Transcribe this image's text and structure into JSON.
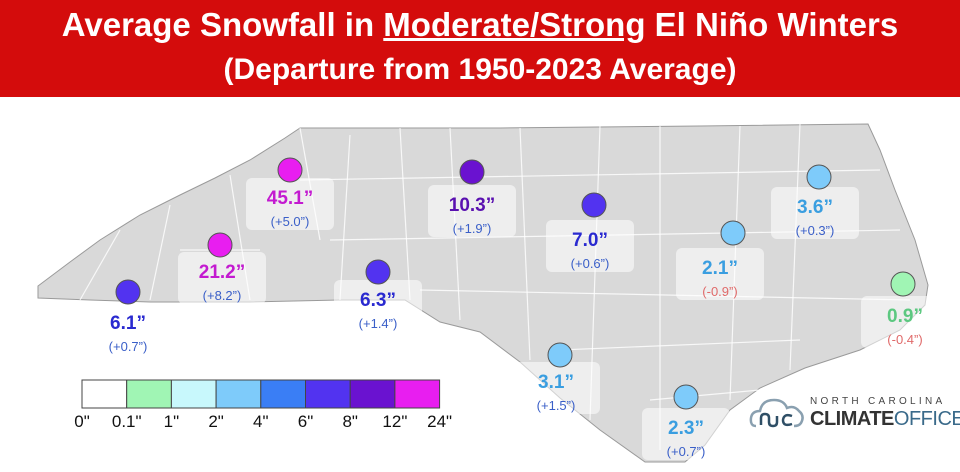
{
  "title": {
    "prefix": "Average Snowfall in ",
    "emphasis": "Moderate/Strong",
    "suffix": " El Niño Winters",
    "subtitle": "(Departure from 1950-2023 Average)"
  },
  "legend": {
    "colors": [
      "#ffffff",
      "#a0f5b4",
      "#c8f8fc",
      "#7ecbfa",
      "#3a7ef5",
      "#5233f0",
      "#6a12d0",
      "#e81ef0"
    ],
    "labels": [
      "0\"",
      "0.1\"",
      "1\"",
      "2\"",
      "4\"",
      "6\"",
      "8\"",
      "12\"",
      "24\""
    ]
  },
  "stations": [
    {
      "value": "45.1”",
      "departure": "(+5.0”)",
      "color": "#e81ef0",
      "text_color": "#c31ad0",
      "dep_color": "#3a5fc8"
    },
    {
      "value": "21.2”",
      "departure": "(+8.2”)",
      "color": "#e81ef0",
      "text_color": "#c31ad0",
      "dep_color": "#3a5fc8"
    },
    {
      "value": "6.1”",
      "departure": "(+0.7”)",
      "color": "#5233f0",
      "text_color": "#2a2ad0",
      "dep_color": "#3a5fc8"
    },
    {
      "value": "6.3”",
      "departure": "(+1.4”)",
      "color": "#5233f0",
      "text_color": "#2a2ad0",
      "dep_color": "#3a5fc8"
    },
    {
      "value": "10.3”",
      "departure": "(+1.9”)",
      "color": "#6a12d0",
      "text_color": "#5a10b0",
      "dep_color": "#3a5fc8"
    },
    {
      "value": "7.0”",
      "departure": "(+0.6”)",
      "color": "#5233f0",
      "text_color": "#2a2ad0",
      "dep_color": "#3a5fc8"
    },
    {
      "value": "2.1”",
      "departure": "(-0.9”)",
      "color": "#7ecbfa",
      "text_color": "#3a9ee0",
      "dep_color": "#e06a6a"
    },
    {
      "value": "3.6”",
      "departure": "(+0.3”)",
      "color": "#7ecbfa",
      "text_color": "#3a9ee0",
      "dep_color": "#3a5fc8"
    },
    {
      "value": "0.9”",
      "departure": "(-0.4”)",
      "color": "#a0f5b4",
      "text_color": "#5cc880",
      "dep_color": "#e06a6a"
    },
    {
      "value": "3.1”",
      "departure": "(+1.5”)",
      "color": "#7ecbfa",
      "text_color": "#3a9ee0",
      "dep_color": "#3a5fc8"
    },
    {
      "value": "2.3”",
      "departure": "(+0.7”)",
      "color": "#7ecbfa",
      "text_color": "#3a9ee0",
      "dep_color": "#3a5fc8"
    }
  ],
  "logo": {
    "line1": "NORTH CAROLINA",
    "line2a": "CLIMATE",
    "line2b": "OFFICE"
  },
  "map_fill": "#d9d9d9"
}
